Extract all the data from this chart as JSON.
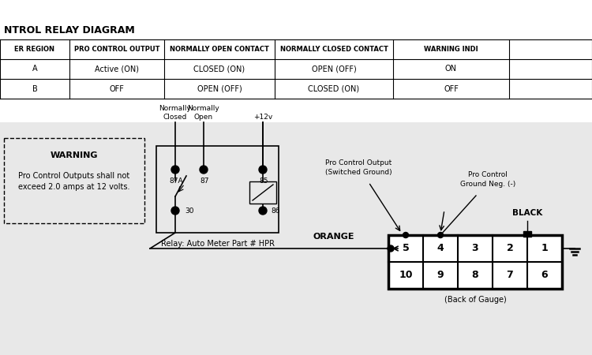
{
  "bg_color": "#e8e8e8",
  "white_bg": "#ffffff",
  "title": "NTROL RELAY DIAGRAM",
  "table_headers": [
    "ER REGION",
    "PRO CONTROL OUTPUT",
    "NORMALLY OPEN CONTACT",
    "NORMALLY CLOSED CONTACT",
    "WARNING INDI"
  ],
  "table_row_A": [
    "A",
    "Active (ON)",
    "CLOSED (ON)",
    "OPEN (OFF)",
    "ON"
  ],
  "table_row_B": [
    "B",
    "OFF",
    "OPEN (OFF)",
    "CLOSED (ON)",
    "OFF"
  ],
  "relay_label": "Relay: Auto Meter Part # HPR",
  "orange_label": "ORANGE",
  "black_label": "BLACK",
  "back_of_gauge": "(Back of Gauge)",
  "pin_top": [
    "5",
    "4",
    "3",
    "2",
    "1"
  ],
  "pin_bot": [
    "10",
    "9",
    "8",
    "7",
    "6"
  ],
  "nc_label": "Normally\nClosed",
  "no_label": "Normally\nOpen",
  "v12_label": "+12v",
  "pro_ctrl_output": "Pro Control Output\n(Switched Ground)",
  "pro_ctrl_ground": "Pro Control\nGround Neg. (-)"
}
